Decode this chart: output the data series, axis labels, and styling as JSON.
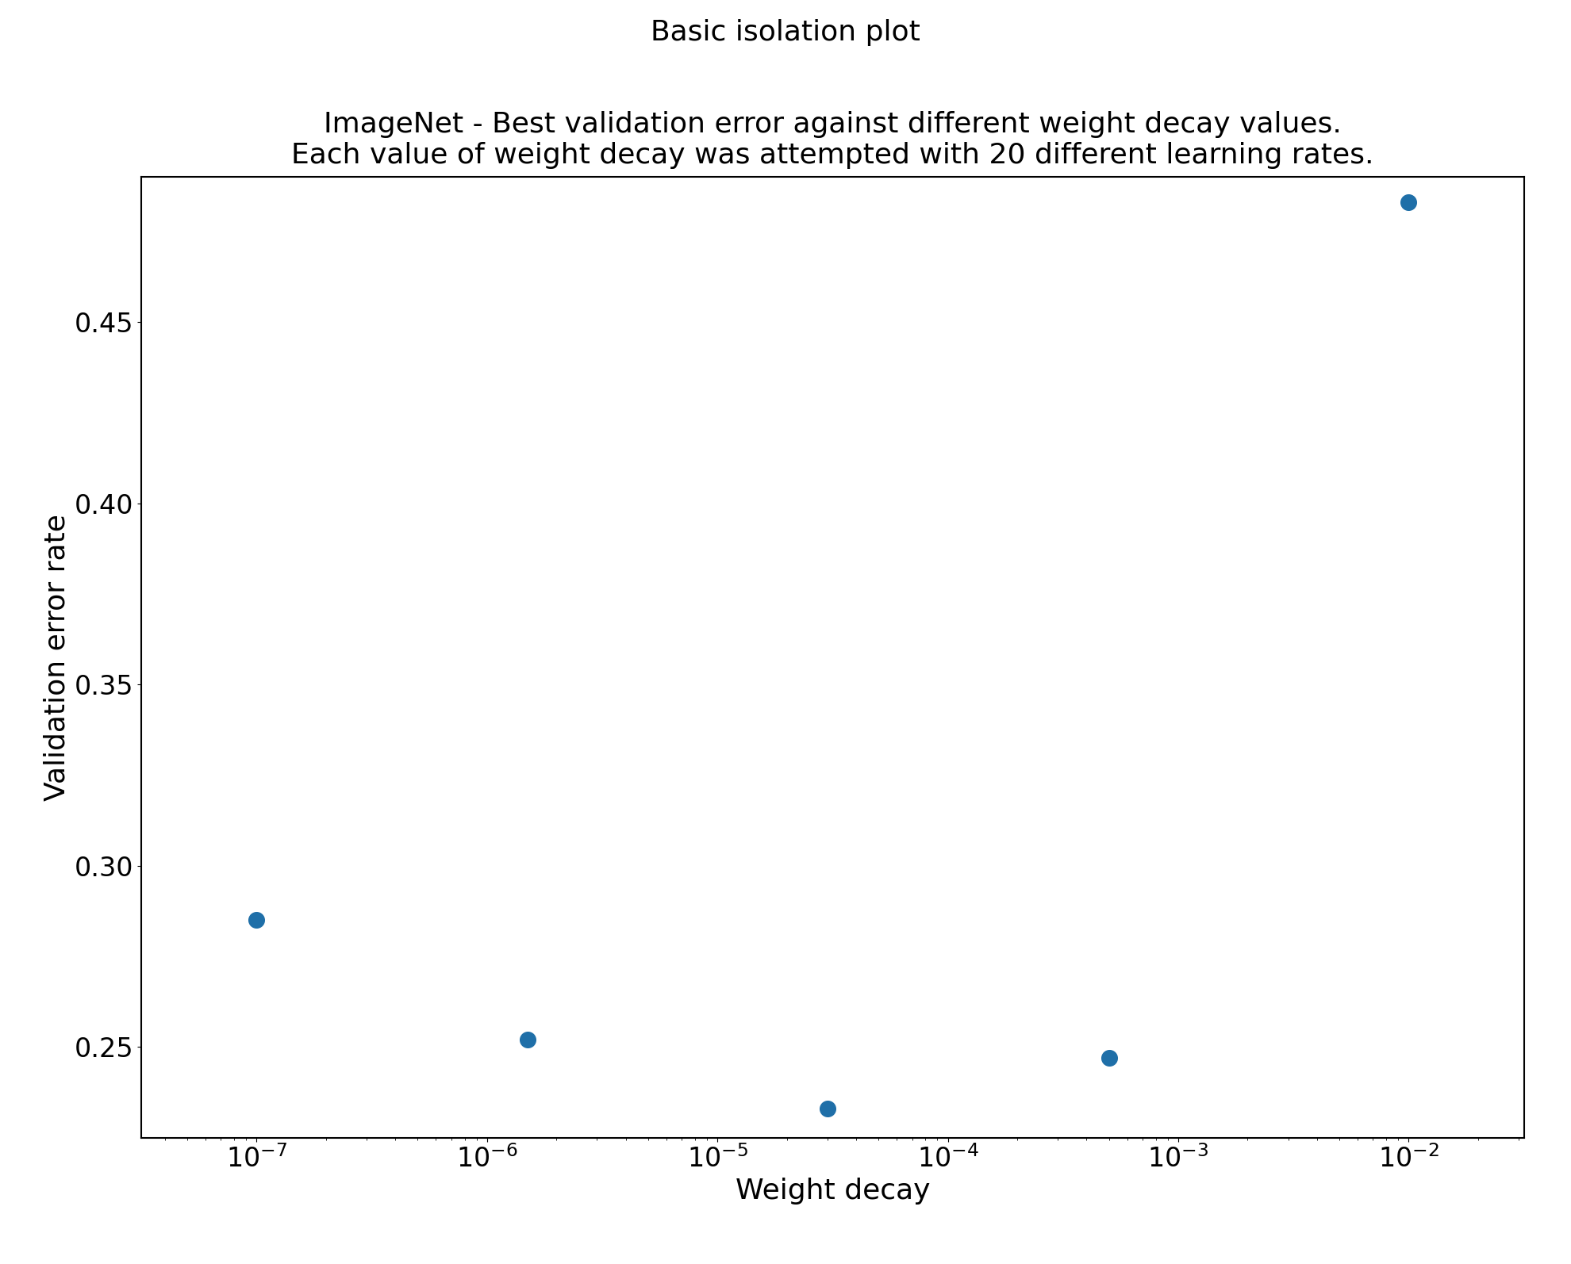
{
  "x_values": [
    1e-07,
    1.5e-06,
    3e-05,
    0.0005,
    0.01
  ],
  "y_values": [
    0.285,
    0.252,
    0.233,
    0.247,
    0.483
  ],
  "title_line1": "Basic isolation plot",
  "title_line2": "ImageNet - Best validation error against different weight decay values.\nEach value of weight decay was attempted with 20 different learning rates.",
  "xlabel": "Weight decay",
  "ylabel": "Validation error rate",
  "dot_color": "#1f6fa8",
  "dot_size": 200,
  "ylim": [
    0.225,
    0.49
  ],
  "title_fontsize": 26,
  "subtitle_fontsize": 26,
  "label_fontsize": 26,
  "tick_fontsize": 24,
  "background_color": "#ffffff"
}
